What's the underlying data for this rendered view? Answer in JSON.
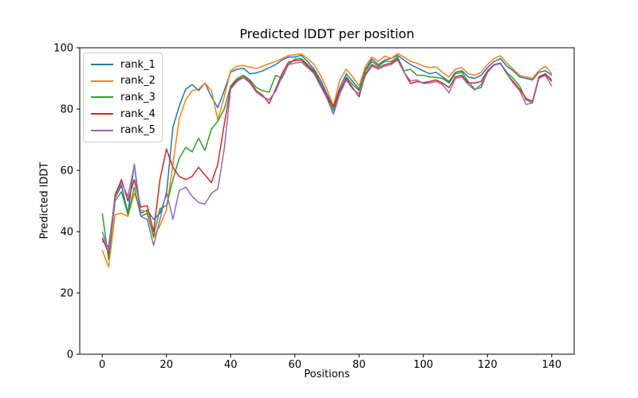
{
  "chart_data": {
    "type": "line",
    "title": "Predicted lDDT per position",
    "xlabel": "Positions",
    "ylabel": "Predicted lDDT",
    "xlim": [
      -7,
      147
    ],
    "ylim": [
      0,
      100
    ],
    "xticks": [
      0,
      20,
      40,
      60,
      80,
      100,
      120,
      140
    ],
    "yticks": [
      0,
      20,
      40,
      60,
      80,
      100
    ],
    "grid": false,
    "legend_position": "upper left",
    "x_start": 0,
    "x_step": 2,
    "series": [
      {
        "name": "rank_1",
        "color": "#1f77b4",
        "values": [
          37,
          35,
          51,
          55,
          46,
          62,
          46,
          47,
          44,
          46,
          52,
          74,
          81,
          86.5,
          88,
          86,
          88.5,
          84,
          80.5,
          86,
          92,
          93,
          93.3,
          91.5,
          91.8,
          92.5,
          93.5,
          94.5,
          96,
          97,
          97,
          97.5,
          95.5,
          93,
          89.5,
          85,
          80.5,
          87,
          91.5,
          89,
          86.5,
          93,
          96.3,
          94.5,
          96,
          96.5,
          97.5,
          96,
          94.5,
          93.5,
          92.5,
          91.5,
          92,
          90.5,
          89,
          92,
          92.5,
          90.5,
          90,
          91,
          93.5,
          95.5,
          96.5,
          94,
          92.5,
          90.5,
          90,
          89.5,
          92,
          92.5,
          91
        ]
      },
      {
        "name": "rank_2",
        "color": "#ff7f0e",
        "values": [
          34,
          28.5,
          45.5,
          46,
          45,
          52.5,
          47,
          46.5,
          38,
          42,
          47,
          62,
          77,
          83,
          86,
          86.5,
          88.5,
          86,
          76.5,
          84,
          92.5,
          94,
          94.2,
          93.7,
          93.2,
          94,
          94.8,
          95.5,
          96.5,
          97.5,
          97.7,
          98,
          96.5,
          94.5,
          91,
          86.5,
          81,
          89.5,
          93,
          90.5,
          87.5,
          94,
          97,
          95.5,
          97.3,
          96.5,
          98.1,
          97,
          95.5,
          95,
          94,
          93.5,
          93.8,
          92,
          90.5,
          93,
          93.5,
          91.5,
          91,
          92,
          94.5,
          96.5,
          97.4,
          95,
          93,
          91,
          90.5,
          90,
          92.5,
          94,
          91.5
        ]
      },
      {
        "name": "rank_3",
        "color": "#2ca02c",
        "values": [
          46,
          31,
          50,
          53,
          45.5,
          54.5,
          45,
          46,
          38.5,
          47.5,
          48.5,
          57,
          64,
          67.5,
          66,
          70.5,
          66.5,
          73.5,
          76,
          80,
          87.5,
          90,
          91,
          89.5,
          87,
          86,
          85.5,
          91,
          90,
          94.5,
          96.3,
          96.5,
          94.5,
          92.5,
          88.5,
          84,
          79.5,
          85.5,
          90.5,
          88,
          86,
          92.5,
          95.5,
          94,
          95.5,
          95.5,
          97,
          92.5,
          93,
          91,
          91,
          90.5,
          90.3,
          90,
          88.5,
          91.5,
          92,
          89,
          86.5,
          87,
          92,
          94.5,
          95,
          92,
          90,
          87.5,
          83,
          82,
          90,
          91.5,
          89.5
        ]
      },
      {
        "name": "rank_4",
        "color": "#d62728",
        "values": [
          38,
          33,
          52,
          57,
          50,
          57,
          48,
          48.5,
          40,
          57,
          67,
          61,
          58,
          57,
          58,
          61,
          58.5,
          56,
          62,
          75,
          87,
          89.5,
          90.5,
          89,
          86,
          84.5,
          81.8,
          86.5,
          91.5,
          95.3,
          95.8,
          96,
          94,
          92,
          88,
          84,
          80.8,
          86,
          90,
          87,
          84,
          91.5,
          94.5,
          93.5,
          94.5,
          95,
          96.4,
          92,
          88.3,
          89,
          88.6,
          89,
          89.5,
          88.5,
          87,
          90.5,
          91,
          88.5,
          88.5,
          89,
          92.5,
          94.5,
          95,
          91.5,
          89,
          86.5,
          83.5,
          82.5,
          90.5,
          91.5,
          89
        ]
      },
      {
        "name": "rank_5",
        "color": "#9467bd",
        "values": [
          40,
          33.5,
          51,
          56,
          51.5,
          61.5,
          45,
          44,
          35.5,
          44,
          53,
          44,
          53.5,
          54.5,
          51.5,
          49.5,
          49,
          52.5,
          54,
          67,
          86.5,
          89,
          90.3,
          88.5,
          85.5,
          84,
          83,
          85.8,
          90.5,
          94.5,
          95,
          95.3,
          93.5,
          91.5,
          87.5,
          83.5,
          78.3,
          85,
          89.5,
          86.5,
          85,
          91,
          94,
          93,
          94,
          94.5,
          96,
          92,
          89.2,
          89.5,
          88.3,
          88.5,
          89,
          88,
          85.3,
          90,
          90.5,
          88,
          86.2,
          88,
          92,
          94.3,
          94.8,
          91.5,
          88.5,
          86,
          81.5,
          82,
          90,
          91,
          87.5
        ]
      }
    ]
  }
}
